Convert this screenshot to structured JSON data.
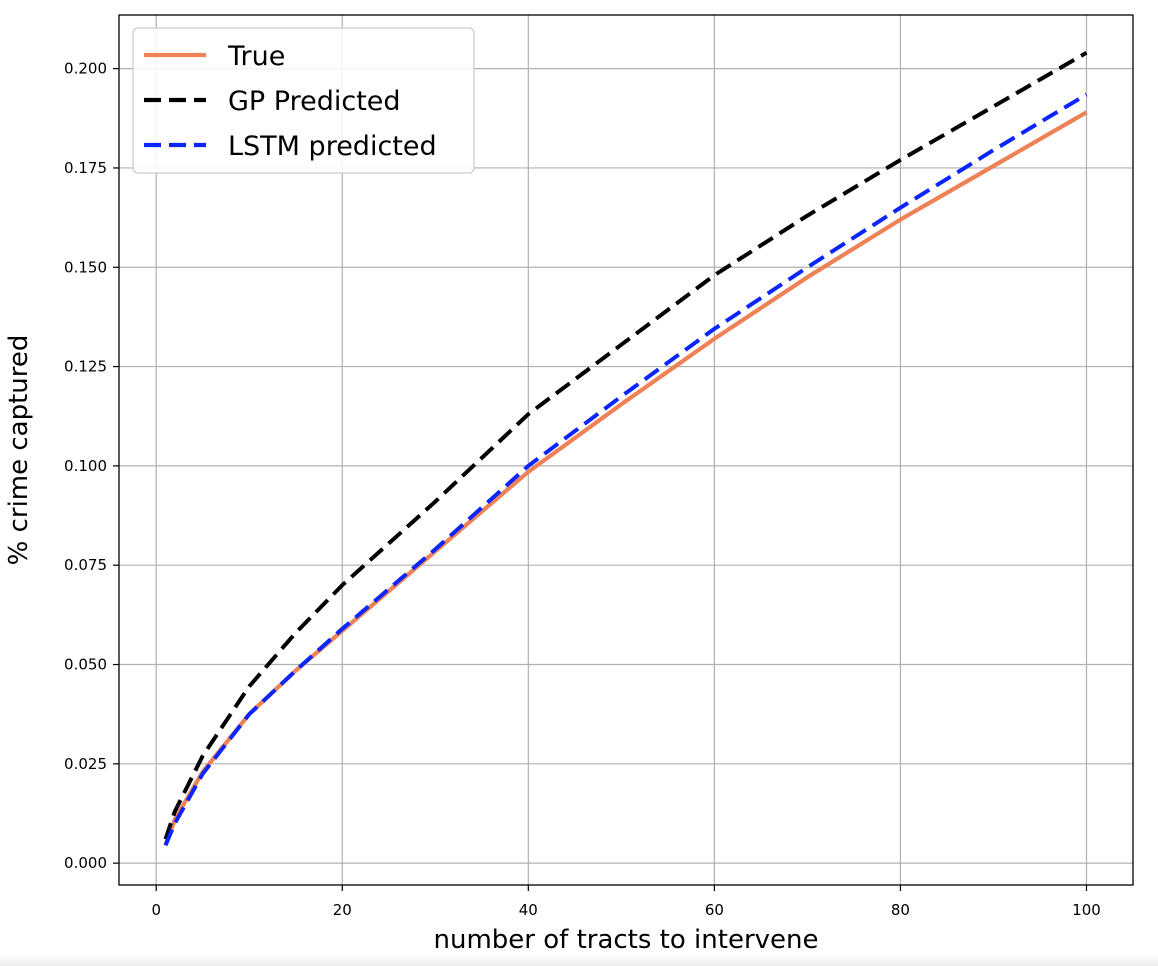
{
  "chart_data": {
    "type": "line",
    "title": "",
    "xlabel": "number of tracts to intervene",
    "ylabel": "% crime captured",
    "xlim": [
      -4,
      105
    ],
    "ylim": [
      -0.0055,
      0.2135
    ],
    "xticks": [
      0,
      20,
      40,
      60,
      80,
      100
    ],
    "xtick_labels": [
      "0",
      "20",
      "40",
      "60",
      "80",
      "100"
    ],
    "yticks": [
      0.0,
      0.025,
      0.05,
      0.075,
      0.1,
      0.125,
      0.15,
      0.175,
      0.2
    ],
    "ytick_labels": [
      "0.000",
      "0.025",
      "0.050",
      "0.075",
      "0.100",
      "0.125",
      "0.150",
      "0.175",
      "0.200"
    ],
    "grid": true,
    "legend_position": "top-left",
    "x": [
      1,
      2,
      5,
      10,
      15,
      20,
      25,
      30,
      40,
      50,
      60,
      70,
      80,
      90,
      100
    ],
    "series": [
      {
        "name": "True",
        "color": "#ee8156",
        "style": "solid",
        "values": [
          0.0045,
          0.011,
          0.023,
          0.0375,
          0.0485,
          0.0585,
          0.0685,
          0.0785,
          0.0985,
          0.1155,
          0.132,
          0.1475,
          0.162,
          0.1755,
          0.189
        ]
      },
      {
        "name": "GP Predicted",
        "color": "#000000",
        "style": "dashed",
        "values": [
          0.006,
          0.013,
          0.027,
          0.0445,
          0.058,
          0.07,
          0.0805,
          0.091,
          0.113,
          0.1305,
          0.148,
          0.163,
          0.177,
          0.1905,
          0.204
        ]
      },
      {
        "name": "LSTM predicted",
        "color": "#0a25ff",
        "style": "dashed",
        "values": [
          0.0045,
          0.01,
          0.0225,
          0.0375,
          0.0485,
          0.059,
          0.069,
          0.079,
          0.1,
          0.1175,
          0.1345,
          0.15,
          0.165,
          0.1795,
          0.1935
        ]
      }
    ]
  }
}
